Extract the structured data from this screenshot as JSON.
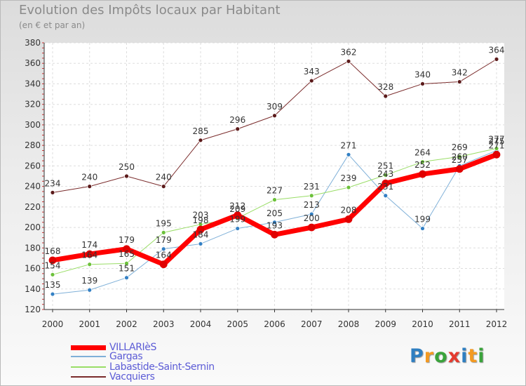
{
  "header": {
    "title": "Evolution des Impôts locaux par Habitant",
    "subtitle": "(en € et par an)"
  },
  "logo": {
    "text": "Proxiti",
    "letter_colors": [
      "#2f7fc1",
      "#f39a22",
      "#3aa33b",
      "#e53b2f",
      "#2f7fc1",
      "#f39a22",
      "#3aa33b"
    ]
  },
  "chart_data": {
    "type": "line",
    "title": "Evolution des Impôts locaux par Habitant",
    "subtitle": "(en € et par an)",
    "xlabel": "",
    "ylabel": "",
    "x": [
      "2000",
      "2001",
      "2002",
      "2003",
      "2004",
      "2005",
      "2006",
      "2007",
      "2008",
      "2009",
      "2010",
      "2011",
      "2012"
    ],
    "ylim": [
      120,
      380
    ],
    "yticks": [
      120,
      140,
      160,
      180,
      200,
      220,
      240,
      260,
      280,
      300,
      320,
      340,
      360,
      380
    ],
    "grid": true,
    "legend_position": "bottom-left",
    "series": [
      {
        "name": "Vacquiers",
        "color": "#7a2b2b",
        "marker": "#5b1a1a",
        "width": 1,
        "values": [
          234,
          240,
          250,
          240,
          285,
          296,
          309,
          343,
          362,
          328,
          340,
          342,
          364
        ]
      },
      {
        "name": "Gargas",
        "color": "#7fb0d8",
        "marker": "#3380c4",
        "width": 1,
        "values": [
          135,
          139,
          151,
          179,
          184,
          199,
          205,
          213,
          271,
          231,
          199,
          260,
          275
        ]
      },
      {
        "name": "Labastide-Saint-Sernin",
        "color": "#99dd66",
        "marker": "#6cc13a",
        "width": 1,
        "values": [
          154,
          164,
          165,
          195,
          203,
          209,
          227,
          231,
          239,
          251,
          264,
          269,
          277
        ]
      },
      {
        "name": "VILLARIèS",
        "color": "#ff0000",
        "marker": "#e00000",
        "width": 7,
        "values": [
          168,
          174,
          179,
          164,
          198,
          212,
          193,
          200,
          208,
          243,
          252,
          257,
          271
        ]
      }
    ],
    "legend": [
      "VILLARIèS",
      "Gargas",
      "Labastide-Saint-Sernin",
      "Vacquiers"
    ]
  }
}
